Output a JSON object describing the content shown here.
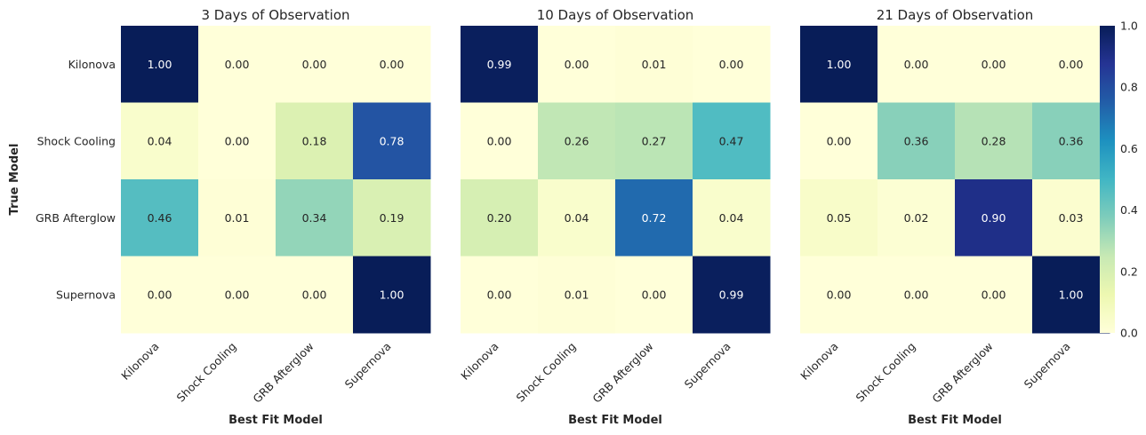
{
  "chart_data": {
    "type": "heatmap",
    "colormap": "YlGnBu",
    "color_range": [
      0.0,
      1.0
    ],
    "colorbar_ticks": [
      "0.0",
      "0.2",
      "0.4",
      "0.6",
      "0.8",
      "1.0"
    ],
    "ylabel": "True Model",
    "xlabel": "Best Fit Model",
    "rows": [
      "Kilonova",
      "Shock Cooling",
      "GRB Afterglow",
      "Supernova"
    ],
    "columns": [
      "Kilonova",
      "Shock Cooling",
      "GRB Afterglow",
      "Supernova"
    ],
    "panels": [
      {
        "title": "3 Days of Observation",
        "values": [
          [
            1.0,
            0.0,
            0.0,
            0.0
          ],
          [
            0.04,
            0.0,
            0.18,
            0.78
          ],
          [
            0.46,
            0.01,
            0.34,
            0.19
          ],
          [
            0.0,
            0.0,
            0.0,
            1.0
          ]
        ]
      },
      {
        "title": "10 Days of Observation",
        "values": [
          [
            0.99,
            0.0,
            0.01,
            0.0
          ],
          [
            0.0,
            0.26,
            0.27,
            0.47
          ],
          [
            0.2,
            0.04,
            0.72,
            0.04
          ],
          [
            0.0,
            0.01,
            0.0,
            0.99
          ]
        ]
      },
      {
        "title": "21 Days of Observation",
        "values": [
          [
            1.0,
            0.0,
            0.0,
            0.0
          ],
          [
            0.0,
            0.36,
            0.28,
            0.36
          ],
          [
            0.05,
            0.02,
            0.9,
            0.03
          ],
          [
            0.0,
            0.0,
            0.0,
            1.0
          ]
        ]
      }
    ]
  }
}
